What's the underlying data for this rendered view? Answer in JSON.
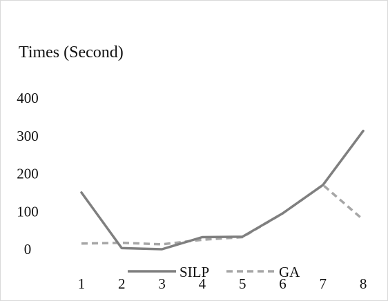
{
  "chart_data": {
    "type": "line",
    "title": "Times (Second)",
    "xlabel": "",
    "ylabel": "",
    "categories": [
      "1",
      "2",
      "3",
      "4",
      "5",
      "6",
      "7",
      "8"
    ],
    "y_ticks": [
      "0",
      "100",
      "200",
      "300",
      "400"
    ],
    "ylim": [
      0,
      400
    ],
    "grid": false,
    "legend_position": "bottom",
    "series": [
      {
        "name": "SILP",
        "values": [
          150,
          3,
          0,
          32,
          33,
          95,
          170,
          313
        ],
        "color": "#7f7f7f",
        "style": "solid"
      },
      {
        "name": "GA",
        "values": [
          15,
          17,
          13,
          25,
          32,
          95,
          170,
          78
        ],
        "color": "#a6a6a6",
        "style": "dashed"
      }
    ]
  }
}
